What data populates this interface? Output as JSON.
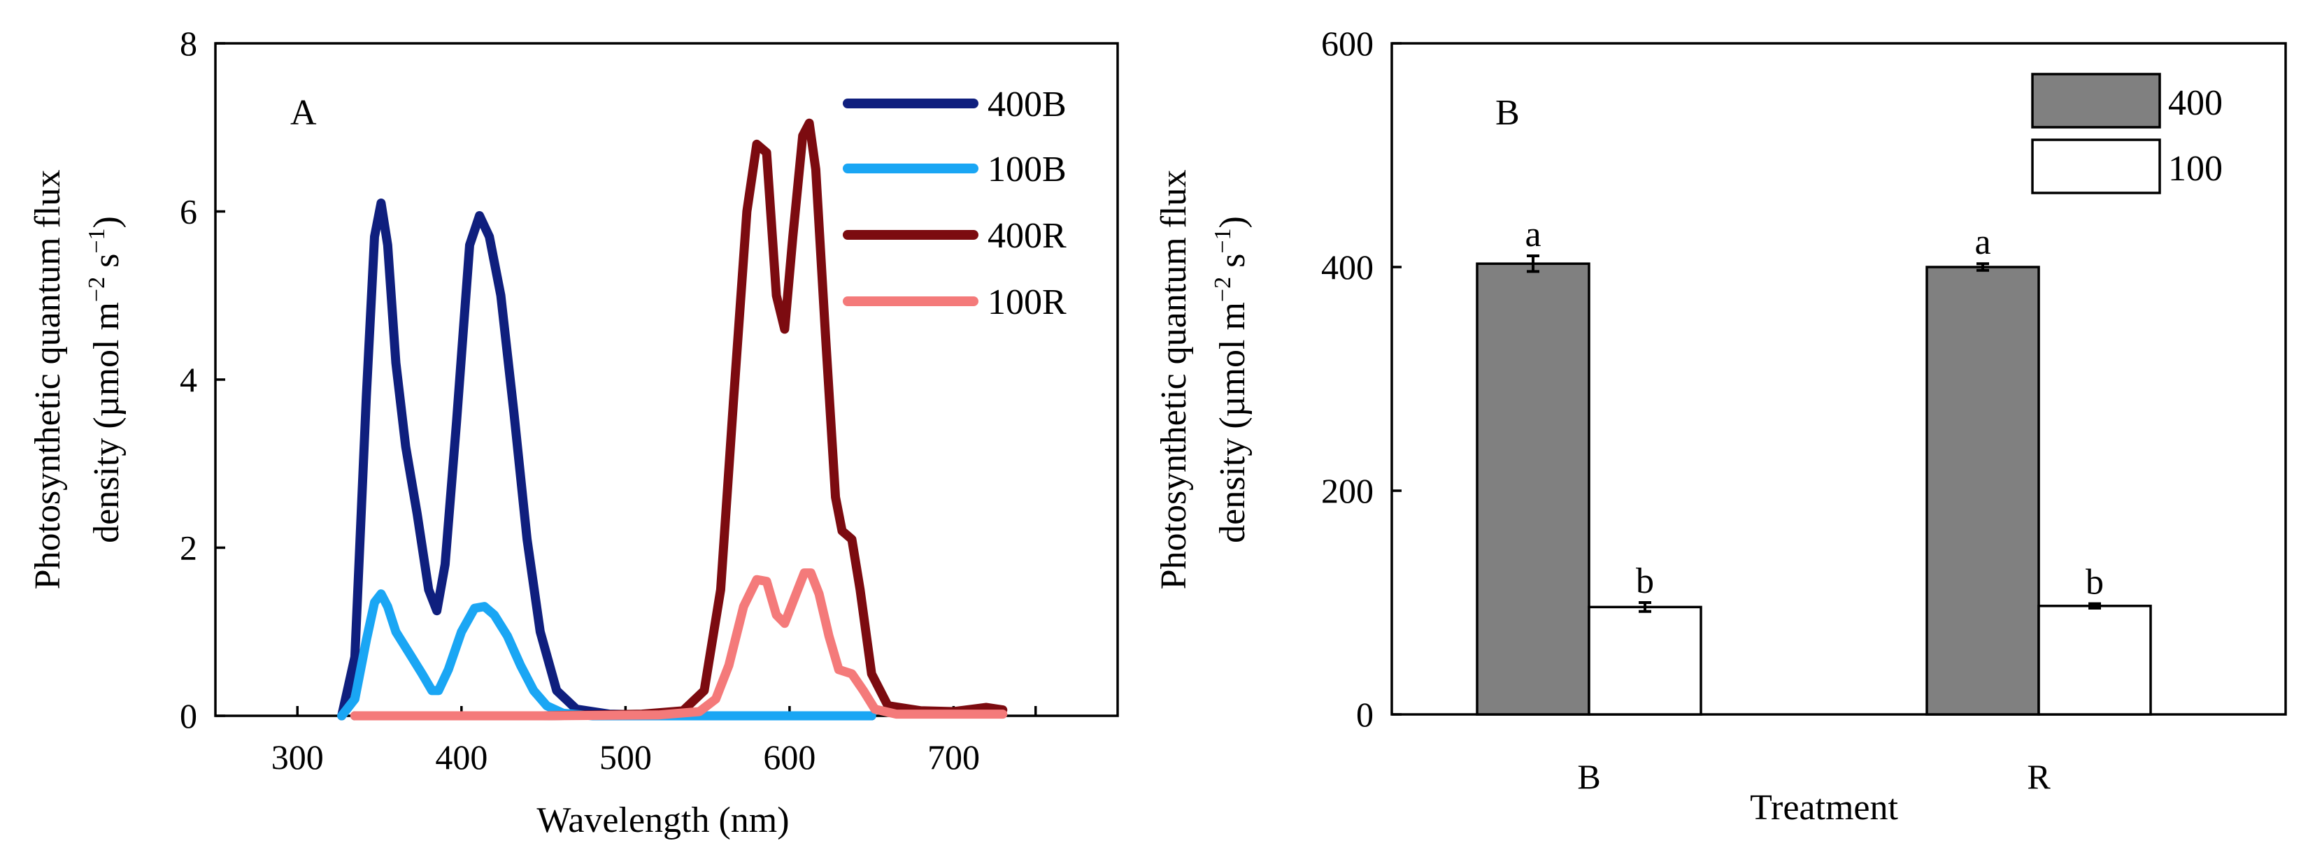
{
  "chart_data": [
    {
      "panel": "A",
      "type": "line",
      "xlabel": "Wavelength (nm)",
      "ylabel_line1": "Photosynthetic quantum flux",
      "ylabel_line2_prefix": "density (µmol m",
      "ylabel_sup1": "−2",
      "ylabel_mid": " s",
      "ylabel_sup2": "−1",
      "ylabel_suffix": ")",
      "xlim": [
        250,
        800
      ],
      "ylim": [
        0,
        8
      ],
      "x_ticks": [
        300,
        400,
        500,
        600,
        700
      ],
      "x_minor_ticks": [
        750
      ],
      "y_ticks": [
        0,
        2,
        4,
        6,
        8
      ],
      "legend_position": "top-right",
      "series": [
        {
          "name": "400B",
          "color": "#0f1f7e",
          "points": [
            [
              327,
              0
            ],
            [
              335,
              0.7
            ],
            [
              342,
              3.8
            ],
            [
              347,
              5.7
            ],
            [
              351,
              6.1
            ],
            [
              355,
              5.6
            ],
            [
              360,
              4.2
            ],
            [
              366,
              3.2
            ],
            [
              373,
              2.4
            ],
            [
              380,
              1.5
            ],
            [
              385,
              1.25
            ],
            [
              390,
              1.8
            ],
            [
              397,
              3.5
            ],
            [
              405,
              5.6
            ],
            [
              411,
              5.95
            ],
            [
              417,
              5.7
            ],
            [
              424,
              5.0
            ],
            [
              432,
              3.6
            ],
            [
              440,
              2.1
            ],
            [
              448,
              1.0
            ],
            [
              458,
              0.3
            ],
            [
              470,
              0.08
            ],
            [
              490,
              0.02
            ],
            [
              540,
              0
            ],
            [
              600,
              0
            ],
            [
              650,
              0
            ]
          ]
        },
        {
          "name": "100B",
          "color": "#1aa6f4",
          "points": [
            [
              327,
              0
            ],
            [
              335,
              0.2
            ],
            [
              342,
              0.9
            ],
            [
              347,
              1.35
            ],
            [
              351,
              1.45
            ],
            [
              355,
              1.3
            ],
            [
              360,
              1.0
            ],
            [
              368,
              0.75
            ],
            [
              376,
              0.5
            ],
            [
              382,
              0.3
            ],
            [
              386,
              0.3
            ],
            [
              392,
              0.55
            ],
            [
              400,
              1.0
            ],
            [
              408,
              1.28
            ],
            [
              414,
              1.3
            ],
            [
              420,
              1.2
            ],
            [
              428,
              0.95
            ],
            [
              436,
              0.6
            ],
            [
              444,
              0.3
            ],
            [
              452,
              0.12
            ],
            [
              462,
              0.03
            ],
            [
              480,
              0
            ],
            [
              540,
              0
            ],
            [
              600,
              0
            ],
            [
              650,
              0
            ]
          ]
        },
        {
          "name": "400R",
          "color": "#7c0b10",
          "points": [
            [
              335,
              0
            ],
            [
              450,
              0
            ],
            [
              510,
              0.02
            ],
            [
              535,
              0.06
            ],
            [
              548,
              0.3
            ],
            [
              558,
              1.5
            ],
            [
              566,
              3.8
            ],
            [
              574,
              6.0
            ],
            [
              580,
              6.8
            ],
            [
              586,
              6.7
            ],
            [
              592,
              5.0
            ],
            [
              597,
              4.6
            ],
            [
              602,
              5.7
            ],
            [
              608,
              6.9
            ],
            [
              612,
              7.05
            ],
            [
              616,
              6.5
            ],
            [
              622,
              4.5
            ],
            [
              628,
              2.6
            ],
            [
              632,
              2.2
            ],
            [
              638,
              2.1
            ],
            [
              643,
              1.5
            ],
            [
              650,
              0.5
            ],
            [
              660,
              0.12
            ],
            [
              680,
              0.06
            ],
            [
              700,
              0.05
            ],
            [
              720,
              0.1
            ],
            [
              730,
              0.07
            ]
          ]
        },
        {
          "name": "100R",
          "color": "#f47a7a",
          "points": [
            [
              335,
              0
            ],
            [
              450,
              0
            ],
            [
              520,
              0.01
            ],
            [
              545,
              0.05
            ],
            [
              555,
              0.2
            ],
            [
              563,
              0.6
            ],
            [
              572,
              1.3
            ],
            [
              580,
              1.62
            ],
            [
              586,
              1.6
            ],
            [
              592,
              1.2
            ],
            [
              597,
              1.1
            ],
            [
              603,
              1.4
            ],
            [
              609,
              1.7
            ],
            [
              613,
              1.7
            ],
            [
              618,
              1.45
            ],
            [
              624,
              0.95
            ],
            [
              630,
              0.55
            ],
            [
              638,
              0.5
            ],
            [
              645,
              0.3
            ],
            [
              652,
              0.08
            ],
            [
              665,
              0.02
            ],
            [
              700,
              0.02
            ],
            [
              730,
              0.02
            ]
          ]
        }
      ]
    },
    {
      "panel": "B",
      "type": "bar",
      "xlabel": "Treatment",
      "ylabel_line1": "Photosynthetic quantum flux",
      "ylabel_line2_prefix": "density (µmol m",
      "ylabel_sup1": "−2",
      "ylabel_mid": " s",
      "ylabel_sup2": "−1",
      "ylabel_suffix": ")",
      "categories": [
        "B",
        "R"
      ],
      "ylim": [
        0,
        600
      ],
      "y_ticks": [
        0,
        200,
        400,
        600
      ],
      "legend_position": "top-right",
      "series": [
        {
          "name": "400",
          "color": "#808080",
          "values": [
            403,
            400
          ],
          "errors": [
            7,
            3
          ],
          "labels": [
            "a",
            "a"
          ]
        },
        {
          "name": "100",
          "color": "#ffffff",
          "values": [
            96,
            97
          ],
          "errors": [
            4,
            2
          ],
          "labels": [
            "b",
            "b"
          ]
        }
      ]
    }
  ]
}
